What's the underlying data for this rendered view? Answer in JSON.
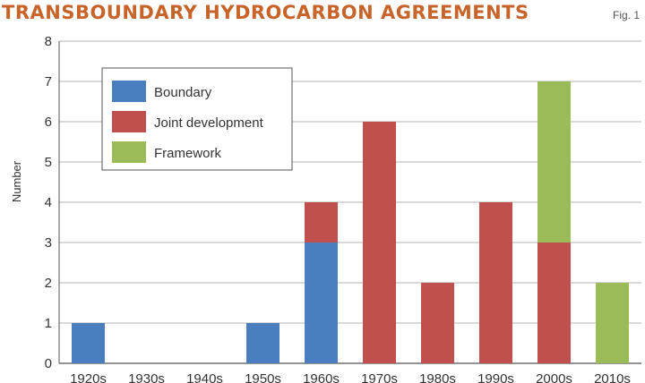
{
  "header": {
    "title": "Transboundary Hydrocarbon Agreements",
    "fig": "Fig. 1"
  },
  "colors": {
    "title": "#c8642a",
    "Boundary": "#4a7ebf",
    "Joint development": "#c0504d",
    "Framework": "#9bbb59"
  },
  "chart_data": {
    "type": "bar",
    "stacked": true,
    "categories": [
      "1920s",
      "1930s",
      "1940s",
      "1950s",
      "1960s",
      "1970s",
      "1980s",
      "1990s",
      "2000s",
      "2010s"
    ],
    "series": [
      {
        "name": "Boundary",
        "values": [
          1,
          0,
          0,
          1,
          3,
          0,
          0,
          0,
          0,
          0
        ]
      },
      {
        "name": "Joint development",
        "values": [
          0,
          0,
          0,
          0,
          1,
          6,
          2,
          4,
          3,
          0
        ]
      },
      {
        "name": "Framework",
        "values": [
          0,
          0,
          0,
          0,
          0,
          0,
          0,
          0,
          4,
          2
        ]
      }
    ],
    "ylabel": "Number",
    "ylim": [
      0,
      8
    ],
    "yticks": [
      0,
      1,
      2,
      3,
      4,
      5,
      6,
      7,
      8
    ],
    "grid": true,
    "legend": "top-left"
  }
}
